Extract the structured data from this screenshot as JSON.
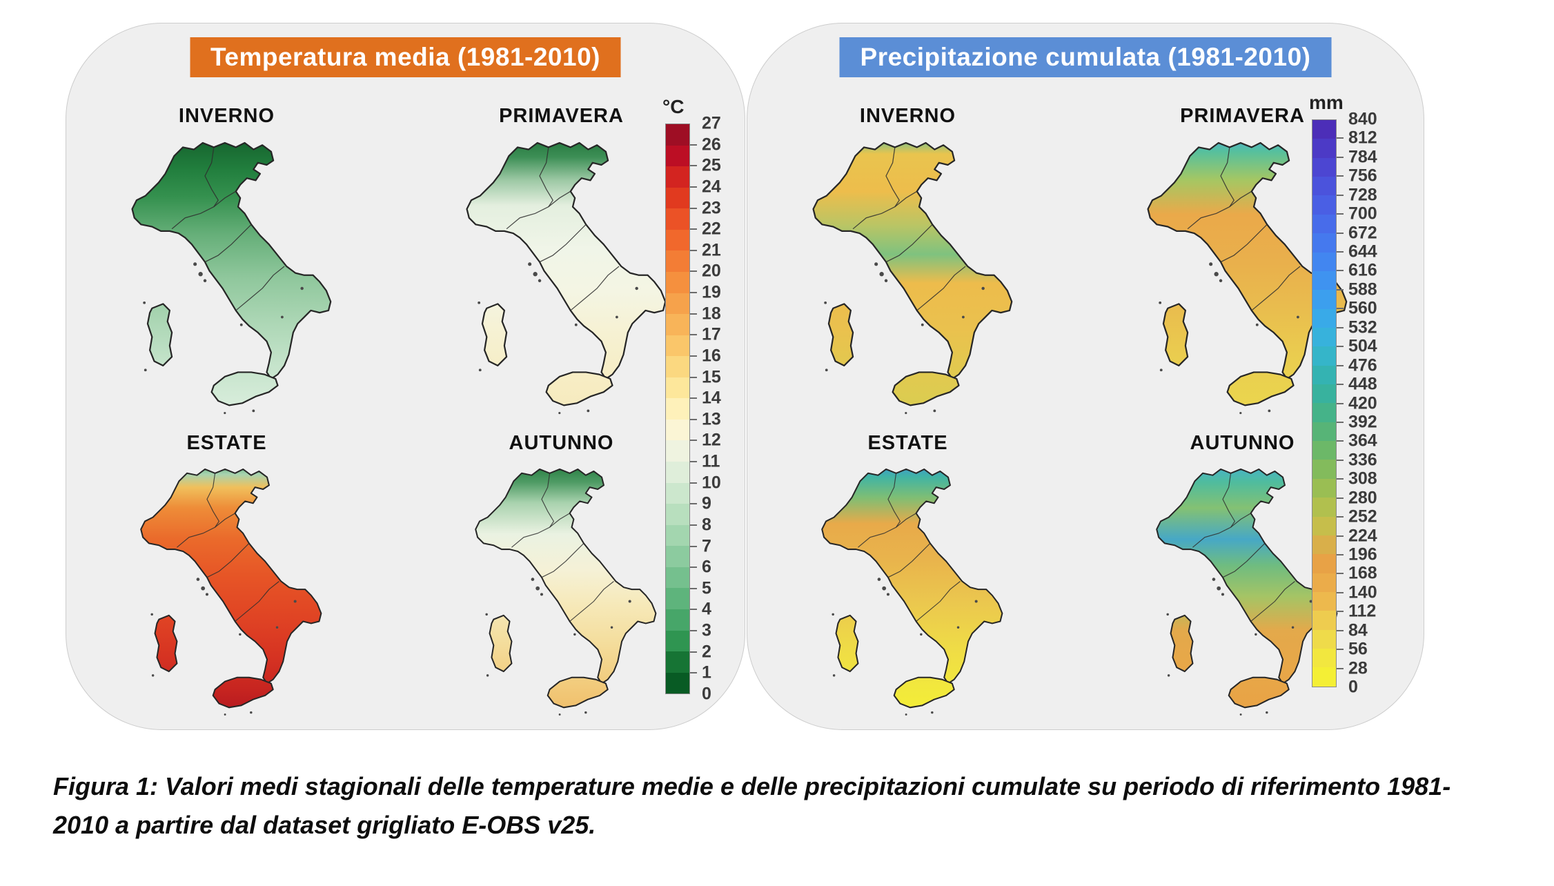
{
  "panels": [
    {
      "id": "temperature",
      "title": "Temperatura media (1981-2010)",
      "title_bg": "#E0701E",
      "unit": "°C",
      "colorbar": {
        "labels": [
          "27",
          "26",
          "25",
          "24",
          "23",
          "22",
          "21",
          "20",
          "19",
          "18",
          "17",
          "16",
          "15",
          "14",
          "13",
          "12",
          "11",
          "10",
          "9",
          "8",
          "7",
          "6",
          "5",
          "4",
          "3",
          "2",
          "1",
          "0"
        ],
        "segments_top_to_bottom": [
          "#9E0E24",
          "#BC0E24",
          "#D32420",
          "#E13A1F",
          "#EB5226",
          "#F1682C",
          "#F37D35",
          "#F5903E",
          "#F6A24B",
          "#F8B459",
          "#FAC66A",
          "#FBD880",
          "#FDE79B",
          "#FEF1BA",
          "#FBF5D5",
          "#EFF3E0",
          "#DFEEDA",
          "#CCE7CD",
          "#B8DFBE",
          "#A3D6AF",
          "#8CCB9F",
          "#75C08E",
          "#5EB47C",
          "#47A669",
          "#2F9551",
          "#167434",
          "#085B24"
        ]
      },
      "maps": [
        {
          "season": "INVERNO",
          "gradient": [
            [
              "0%",
              "#145E2B"
            ],
            [
              "12%",
              "#217E3D"
            ],
            [
              "22%",
              "#35914F"
            ],
            [
              "35%",
              "#66AF79"
            ],
            [
              "50%",
              "#8FC79C"
            ],
            [
              "65%",
              "#ABD6B4"
            ],
            [
              "80%",
              "#C4E3CA"
            ],
            [
              "100%",
              "#DFF0E1"
            ]
          ]
        },
        {
          "season": "PRIMAVERA",
          "gradient": [
            [
              "0%",
              "#1B6F35"
            ],
            [
              "8%",
              "#3D8F56"
            ],
            [
              "16%",
              "#9CC8A4"
            ],
            [
              "25%",
              "#E4EFDF"
            ],
            [
              "40%",
              "#F0F5E8"
            ],
            [
              "55%",
              "#F4F5E3"
            ],
            [
              "70%",
              "#F6F1D2"
            ],
            [
              "85%",
              "#F7EDC4"
            ],
            [
              "100%",
              "#F6E9BC"
            ]
          ]
        },
        {
          "season": "ESTATE",
          "gradient": [
            [
              "0%",
              "#3E9C62"
            ],
            [
              "5%",
              "#A7D3B0"
            ],
            [
              "10%",
              "#F0C05C"
            ],
            [
              "18%",
              "#EE8C38"
            ],
            [
              "30%",
              "#EA6A2B"
            ],
            [
              "45%",
              "#E65426"
            ],
            [
              "60%",
              "#E04424"
            ],
            [
              "75%",
              "#D63322"
            ],
            [
              "88%",
              "#C62420"
            ],
            [
              "100%",
              "#AE1420"
            ]
          ]
        },
        {
          "season": "AUTUNNO",
          "gradient": [
            [
              "0%",
              "#1D7538"
            ],
            [
              "8%",
              "#4E9B64"
            ],
            [
              "16%",
              "#A9D2AE"
            ],
            [
              "28%",
              "#EAF2E2"
            ],
            [
              "42%",
              "#F5F1D6"
            ],
            [
              "55%",
              "#F6E9B9"
            ],
            [
              "70%",
              "#F4DD9C"
            ],
            [
              "85%",
              "#F2CC7D"
            ],
            [
              "100%",
              "#EFB964"
            ]
          ]
        }
      ]
    },
    {
      "id": "precipitation",
      "title": "Precipitazione cumulata (1981-2010)",
      "title_bg": "#5B8ED6",
      "unit": "mm",
      "colorbar": {
        "labels": [
          "840",
          "812",
          "784",
          "756",
          "728",
          "700",
          "672",
          "644",
          "616",
          "588",
          "560",
          "532",
          "504",
          "476",
          "448",
          "420",
          "392",
          "364",
          "336",
          "308",
          "280",
          "252",
          "224",
          "196",
          "168",
          "140",
          "112",
          "84",
          "56",
          "28",
          "0"
        ],
        "segments_top_to_bottom": [
          "#4C2EB8",
          "#4C3AC6",
          "#4C46D2",
          "#4B53DC",
          "#4A5FE4",
          "#486CEA",
          "#4579EE",
          "#4286F0",
          "#3F93F0",
          "#3C9FEE",
          "#39AAE8",
          "#37B2DC",
          "#35B5C9",
          "#34B3B2",
          "#38B29E",
          "#45B389",
          "#57B477",
          "#6CB868",
          "#83BB5C",
          "#9ABE53",
          "#B1C04E",
          "#C6BE4B",
          "#D9AF4A",
          "#E8A246",
          "#EBAC4A",
          "#EDB94D",
          "#EECC4F",
          "#EFDB4A",
          "#F2E73F",
          "#F4EF35"
        ]
      },
      "maps": [
        {
          "season": "INVERNO",
          "gradient": [
            [
              "0%",
              "#4FC0A0"
            ],
            [
              "7%",
              "#E9C44E"
            ],
            [
              "20%",
              "#EDBD4C"
            ],
            [
              "32%",
              "#B9C565"
            ],
            [
              "42%",
              "#7FC27F"
            ],
            [
              "52%",
              "#EDBC4C"
            ],
            [
              "68%",
              "#EAC14E"
            ],
            [
              "82%",
              "#E2C94F"
            ],
            [
              "100%",
              "#D8CE51"
            ]
          ]
        },
        {
          "season": "PRIMAVERA",
          "gradient": [
            [
              "0%",
              "#4FA8DC"
            ],
            [
              "6%",
              "#55C09E"
            ],
            [
              "16%",
              "#A5C763"
            ],
            [
              "28%",
              "#EAA94A"
            ],
            [
              "45%",
              "#E9B04C"
            ],
            [
              "60%",
              "#E9BC4E"
            ],
            [
              "78%",
              "#EACD4F"
            ],
            [
              "100%",
              "#EBD84E"
            ]
          ]
        },
        {
          "season": "ESTATE",
          "gradient": [
            [
              "0%",
              "#3E8EE0"
            ],
            [
              "6%",
              "#41B4A4"
            ],
            [
              "14%",
              "#7FBE74"
            ],
            [
              "24%",
              "#E8AA4A"
            ],
            [
              "38%",
              "#E9B44C"
            ],
            [
              "55%",
              "#EBC84E"
            ],
            [
              "72%",
              "#EFDC46"
            ],
            [
              "88%",
              "#F2E93C"
            ],
            [
              "100%",
              "#F5F034"
            ]
          ]
        },
        {
          "season": "AUTUNNO",
          "gradient": [
            [
              "0%",
              "#45AFD8"
            ],
            [
              "8%",
              "#4FBC9E"
            ],
            [
              "18%",
              "#84C173"
            ],
            [
              "30%",
              "#47A8C6"
            ],
            [
              "40%",
              "#6FBC80"
            ],
            [
              "52%",
              "#A5C465"
            ],
            [
              "65%",
              "#E3A94B"
            ],
            [
              "80%",
              "#E8A748"
            ],
            [
              "100%",
              "#E9A245"
            ]
          ]
        }
      ]
    }
  ],
  "caption": "Figura 1: Valori medi stagionali delle temperature medie e delle precipitazioni cumulate su periodo di riferimento 1981-2010 a partire dal dataset grigliato E-OBS v25."
}
